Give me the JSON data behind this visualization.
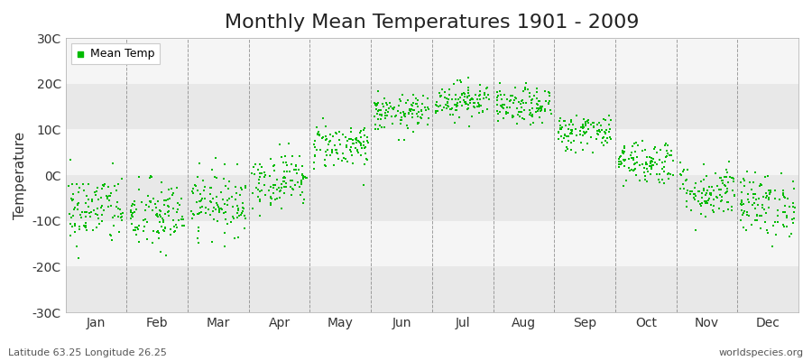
{
  "title": "Monthly Mean Temperatures 1901 - 2009",
  "ylabel": "Temperature",
  "xlabel_bottom_left": "Latitude 63.25 Longitude 26.25",
  "xlabel_bottom_right": "worldspecies.org",
  "legend_label": "Mean Temp",
  "marker_color": "#00bb00",
  "marker_size": 4,
  "background_color": "#ffffff",
  "plot_bg_light": "#f5f5f5",
  "plot_bg_dark": "#e8e8e8",
  "grid_color": "#888888",
  "ylim": [
    -30,
    30
  ],
  "yticks": [
    -30,
    -20,
    -10,
    0,
    10,
    20,
    30
  ],
  "ytick_labels": [
    "-30C",
    "-20C",
    "-10C",
    "0C",
    "10C",
    "20C",
    "30C"
  ],
  "months": [
    "Jan",
    "Feb",
    "Mar",
    "Apr",
    "May",
    "Jun",
    "Jul",
    "Aug",
    "Sep",
    "Oct",
    "Nov",
    "Dec"
  ],
  "monthly_mean_temps": [
    -7.5,
    -9.0,
    -6.0,
    -1.0,
    6.5,
    13.5,
    16.5,
    15.0,
    9.5,
    3.0,
    -3.5,
    -6.5
  ],
  "monthly_std": [
    4.0,
    4.0,
    3.5,
    3.0,
    2.5,
    2.0,
    2.0,
    2.0,
    2.0,
    2.5,
    3.0,
    3.5
  ],
  "n_years": 109,
  "seed": 42,
  "title_fontsize": 16,
  "axis_fontsize": 10,
  "ylabel_fontsize": 11
}
